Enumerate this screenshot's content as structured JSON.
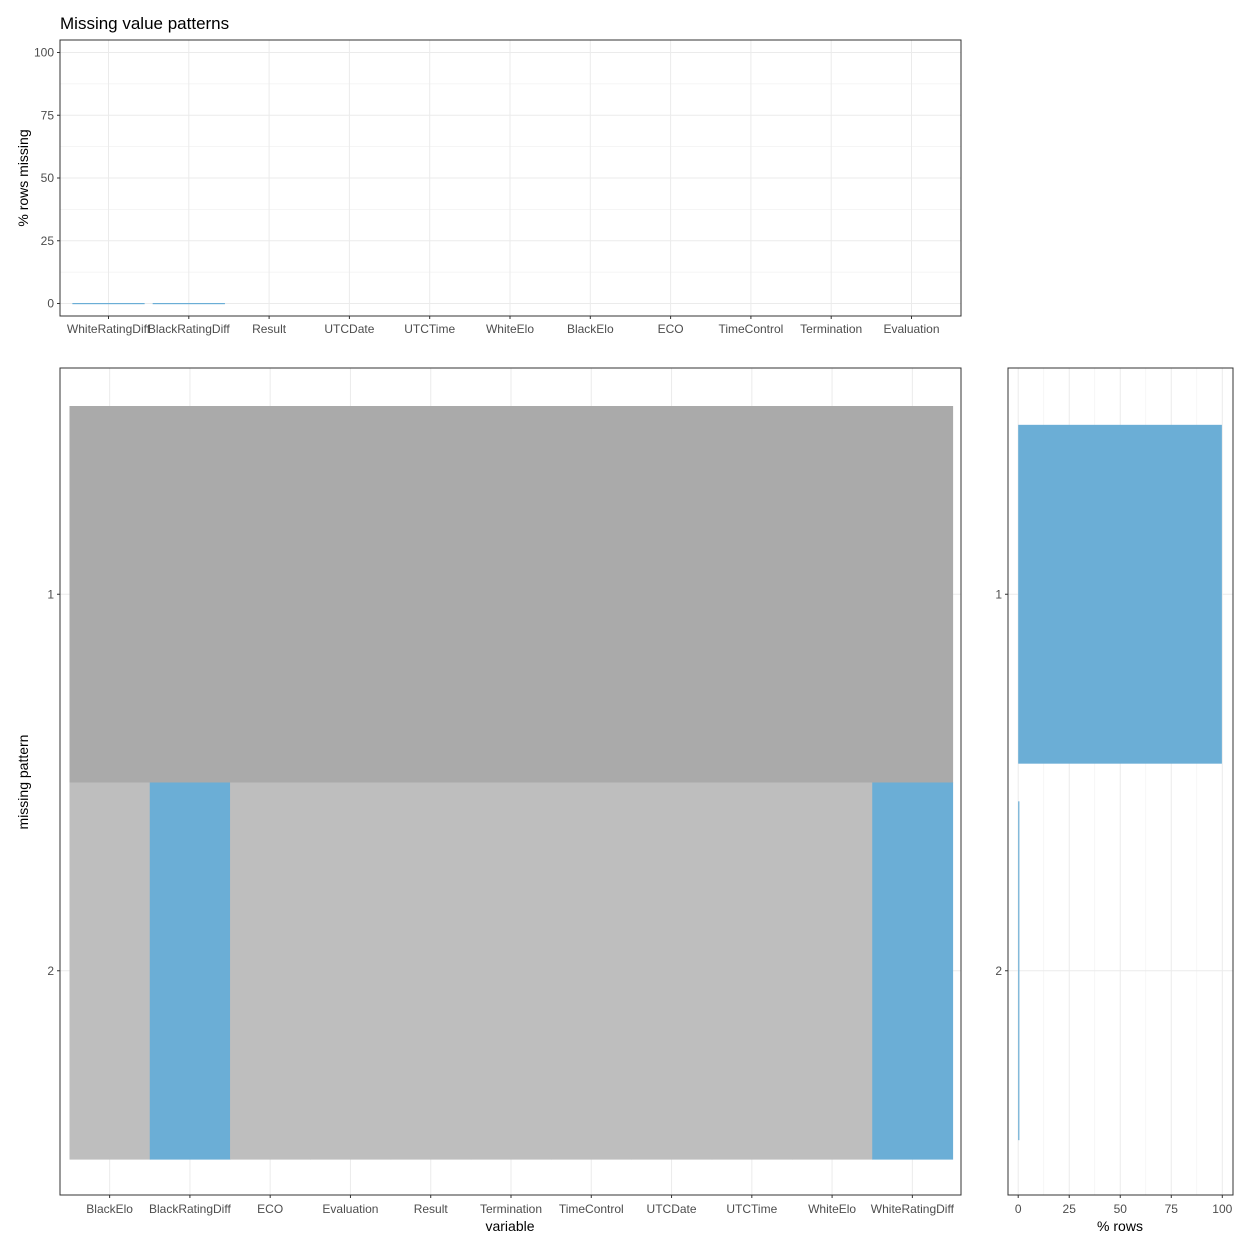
{
  "title": "Missing value patterns",
  "chart_data": [
    {
      "type": "bar",
      "panel": "top",
      "ylabel": "% rows missing",
      "xlabel": "",
      "ylim": [
        0,
        100
      ],
      "yticks": [
        0,
        25,
        50,
        75,
        100
      ],
      "categories": [
        "WhiteRatingDiff",
        "BlackRatingDiff",
        "Result",
        "UTCDate",
        "UTCTime",
        "WhiteElo",
        "BlackElo",
        "ECO",
        "TimeControl",
        "Termination",
        "Evaluation"
      ],
      "values": [
        0.2,
        0.2,
        0,
        0,
        0,
        0,
        0,
        0,
        0,
        0,
        0
      ],
      "grid": true
    },
    {
      "type": "heatmap",
      "panel": "main",
      "xlabel": "variable",
      "ylabel": "missing pattern",
      "variables": [
        "BlackElo",
        "BlackRatingDiff",
        "ECO",
        "Evaluation",
        "Result",
        "Termination",
        "TimeControl",
        "UTCDate",
        "UTCTime",
        "WhiteElo",
        "WhiteRatingDiff"
      ],
      "patterns": [
        "1",
        "2"
      ],
      "missing": [
        [
          false,
          false,
          false,
          false,
          false,
          false,
          false,
          false,
          false,
          false,
          false
        ],
        [
          false,
          true,
          false,
          false,
          false,
          false,
          false,
          false,
          false,
          false,
          true
        ]
      ],
      "pattern_fills": [
        "#aaaaaa",
        "#bebebe"
      ],
      "missing_color": "#6baed6"
    },
    {
      "type": "bar",
      "panel": "right",
      "orientation": "horizontal",
      "xlabel": "% rows",
      "ylabel": "",
      "xlim": [
        0,
        100
      ],
      "xticks": [
        0,
        25,
        50,
        75,
        100
      ],
      "categories": [
        "1",
        "2"
      ],
      "values": [
        99.8,
        0.2
      ],
      "grid": true
    }
  ],
  "colors": {
    "missing": "#6baed6",
    "complete_pattern": "#aaaaaa",
    "other_pattern": "#bebebe",
    "grid": "#ebebeb",
    "border": "#333333"
  }
}
